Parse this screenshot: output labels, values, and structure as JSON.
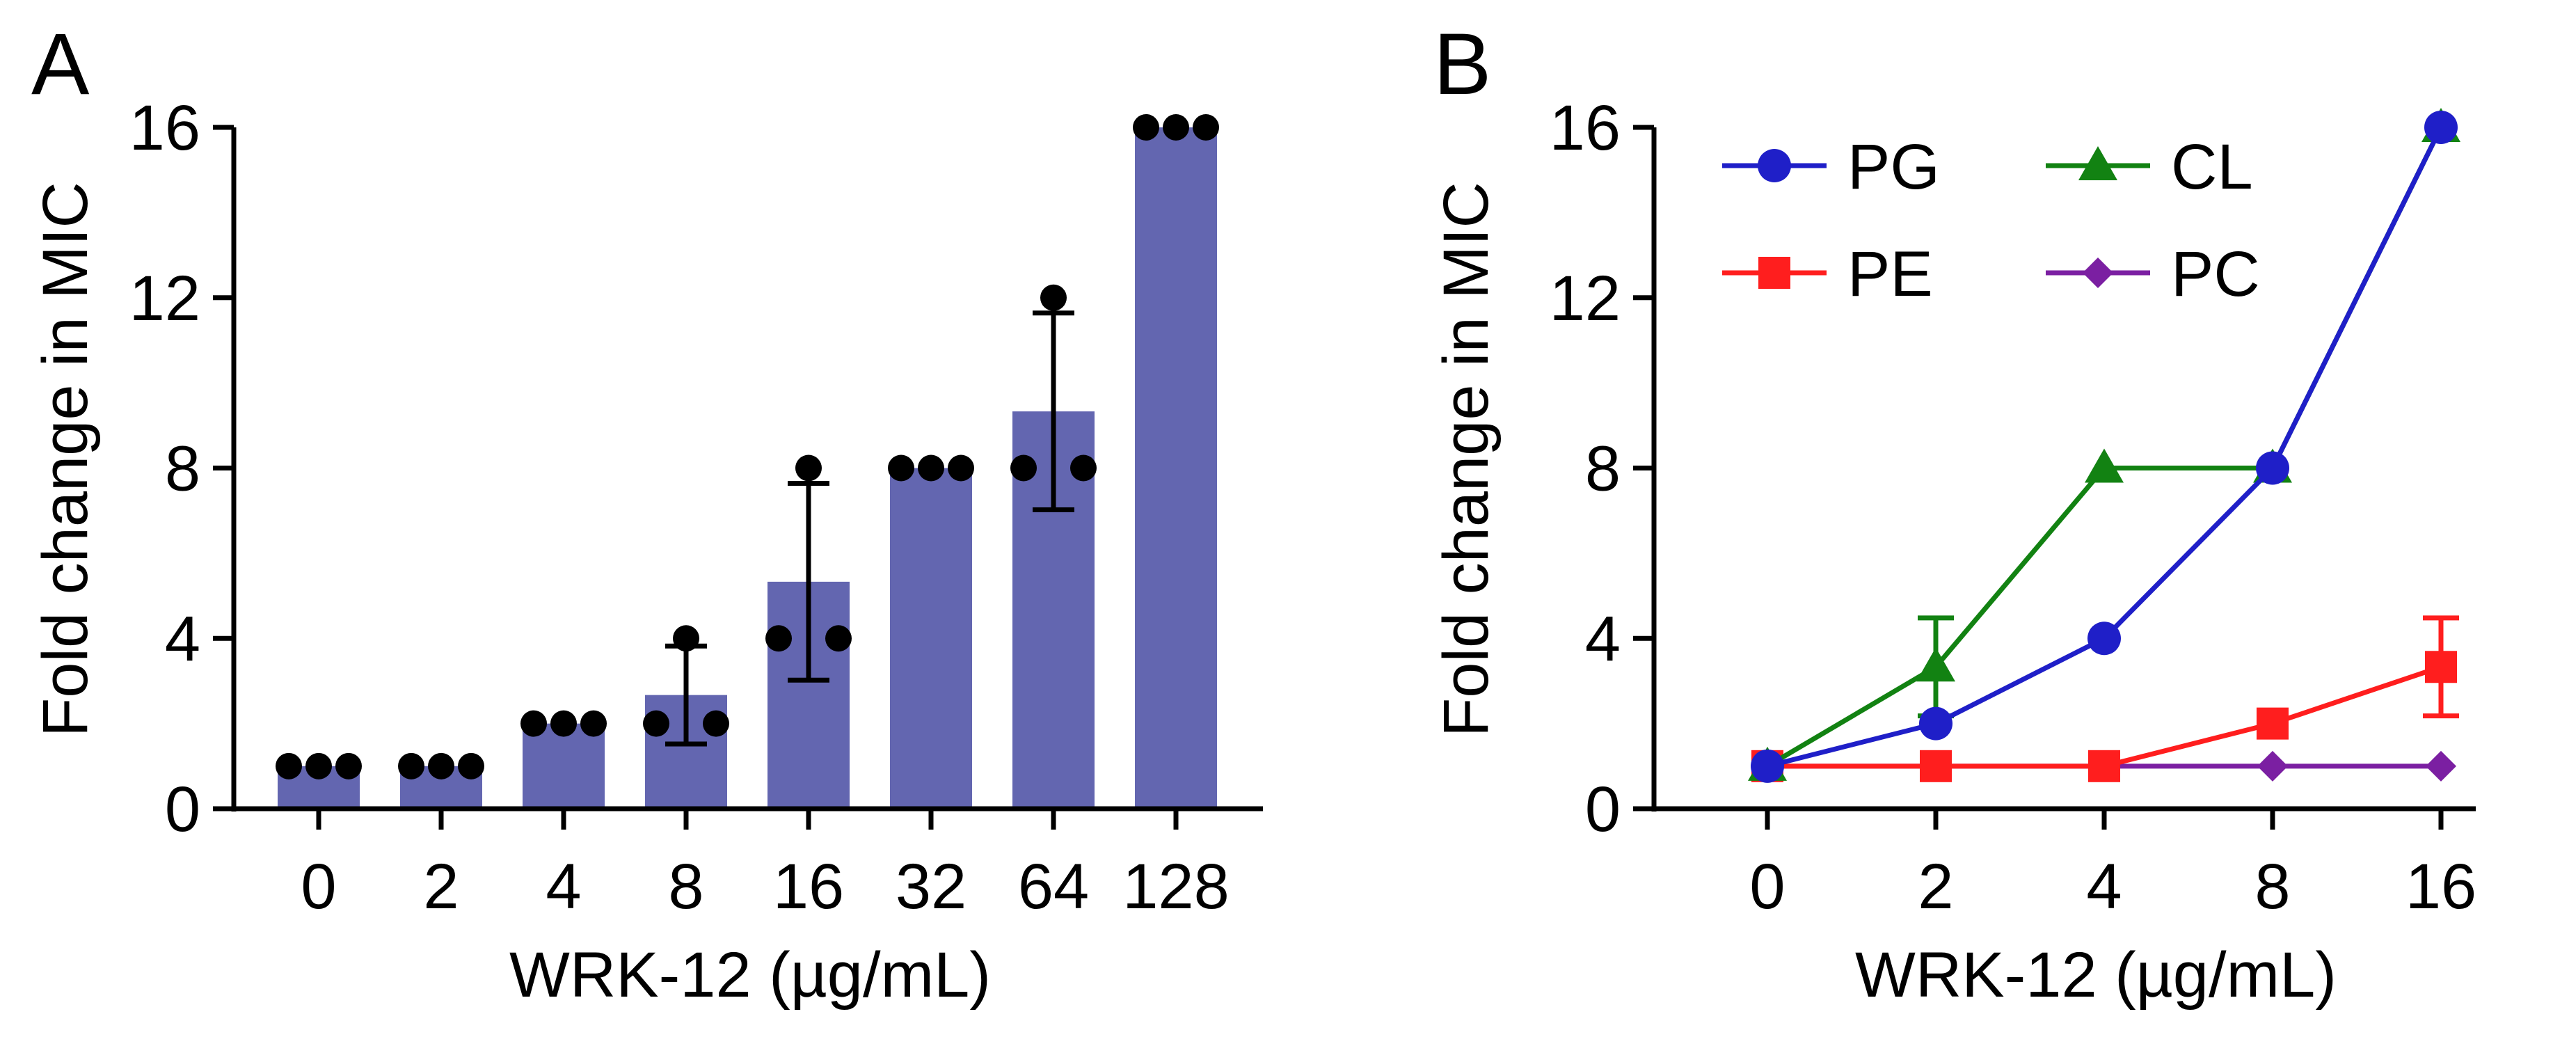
{
  "chart_data": [
    {
      "panel": "A",
      "type": "bar",
      "title": "",
      "xlabel": "WRK-12 (µg/mL)",
      "ylabel": "Fold change in MIC",
      "ylim": [
        0,
        16
      ],
      "yticks": [
        0,
        4,
        8,
        12,
        16
      ],
      "categories": [
        "0",
        "2",
        "4",
        "8",
        "16",
        "32",
        "64",
        "128"
      ],
      "values": [
        1,
        1,
        2,
        2.67,
        5.33,
        8,
        9.33,
        16
      ],
      "error_sd": [
        0,
        0,
        0,
        1.15,
        2.31,
        0,
        2.31,
        0
      ],
      "replicates": [
        [
          1,
          1,
          1
        ],
        [
          1,
          1,
          1
        ],
        [
          2,
          2,
          2
        ],
        [
          2,
          4,
          2
        ],
        [
          4,
          8,
          4
        ],
        [
          8,
          8,
          8
        ],
        [
          8,
          12,
          8
        ],
        [
          16,
          16,
          16
        ]
      ],
      "bar_color": "#6366B0",
      "point_color": "#000000"
    },
    {
      "panel": "B",
      "type": "line",
      "title": "",
      "xlabel": "WRK-12 (µg/mL)",
      "ylabel": "Fold change in MIC",
      "ylim": [
        0,
        16
      ],
      "yticks": [
        0,
        4,
        8,
        12,
        16
      ],
      "categories": [
        "0",
        "2",
        "4",
        "8",
        "16"
      ],
      "legend_position": "top-left",
      "series": [
        {
          "name": "PG",
          "color": "#1F1FC8",
          "marker": "circle",
          "values": [
            1,
            2,
            4,
            8,
            16
          ],
          "error": [
            0,
            0,
            0,
            0,
            0
          ]
        },
        {
          "name": "PE",
          "color": "#FF1E1E",
          "marker": "square",
          "values": [
            1,
            1,
            1,
            2,
            3.33
          ],
          "error": [
            0,
            0,
            0,
            0,
            1.15
          ]
        },
        {
          "name": "CL",
          "color": "#128212",
          "marker": "triangle",
          "values": [
            1,
            3.33,
            8,
            8,
            16
          ],
          "error": [
            0,
            1.15,
            0,
            0,
            0
          ]
        },
        {
          "name": "PC",
          "color": "#7B1FA2",
          "marker": "diamond",
          "values": [
            1,
            1,
            1,
            1,
            1
          ],
          "error": [
            0,
            0,
            0,
            0,
            0
          ]
        }
      ]
    }
  ]
}
